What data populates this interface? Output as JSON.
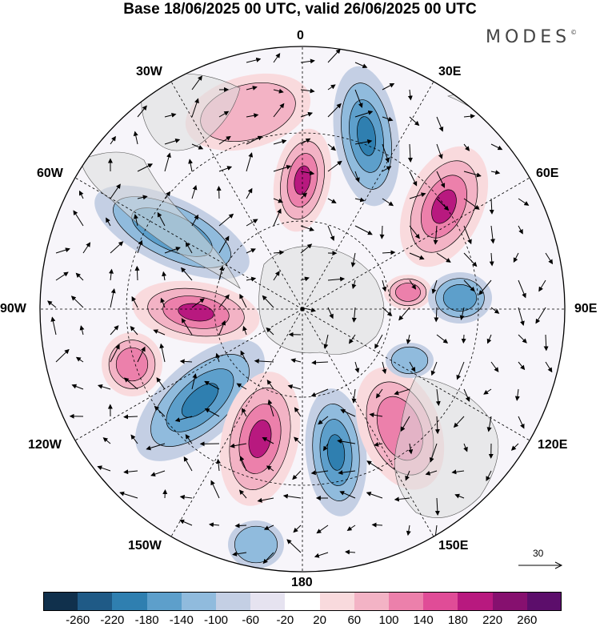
{
  "title": "Base 18/06/2025 00 UTC, valid 26/06/2025 00 UTC",
  "brand": "MODES",
  "brand_mark": "©",
  "labels": {
    "lon_0": "0",
    "lon_30e": "30E",
    "lon_60e": "60E",
    "lon_90e": "90E",
    "lon_120e": "120E",
    "lon_150e": "150E",
    "lon_180": "180",
    "lon_150w": "150W",
    "lon_120w": "120W",
    "lon_90w": "90W",
    "lon_60w": "60W",
    "lon_30w": "30W"
  },
  "vector_scale_label": "30",
  "colorbar": {
    "colors": [
      "#10304c",
      "#1f5a86",
      "#2f7fb0",
      "#5d9fcb",
      "#90bbdd",
      "#c4cfe4",
      "#e6e3f0",
      "#ffffff",
      "#f9dadd",
      "#f3b3c5",
      "#ec80ab",
      "#e04c97",
      "#b8197f",
      "#86106f",
      "#5c0e6b"
    ],
    "ticks": [
      "-260",
      "-220",
      "-180",
      "-140",
      "-100",
      "-60",
      "-20",
      "20",
      "60",
      "100",
      "140",
      "180",
      "220",
      "260"
    ]
  },
  "anomaly_colors": {
    "neg_strong": "#2f7fb0",
    "neg_mid": "#5d9fcb",
    "neg_light": "#90bbdd",
    "neg_faint": "#c4cfe4",
    "pos_faint": "#f9dadd",
    "pos_light": "#f3b3c5",
    "pos_mid": "#ec80ab",
    "pos_strong": "#b8197f",
    "land": "#dcdcdc"
  }
}
